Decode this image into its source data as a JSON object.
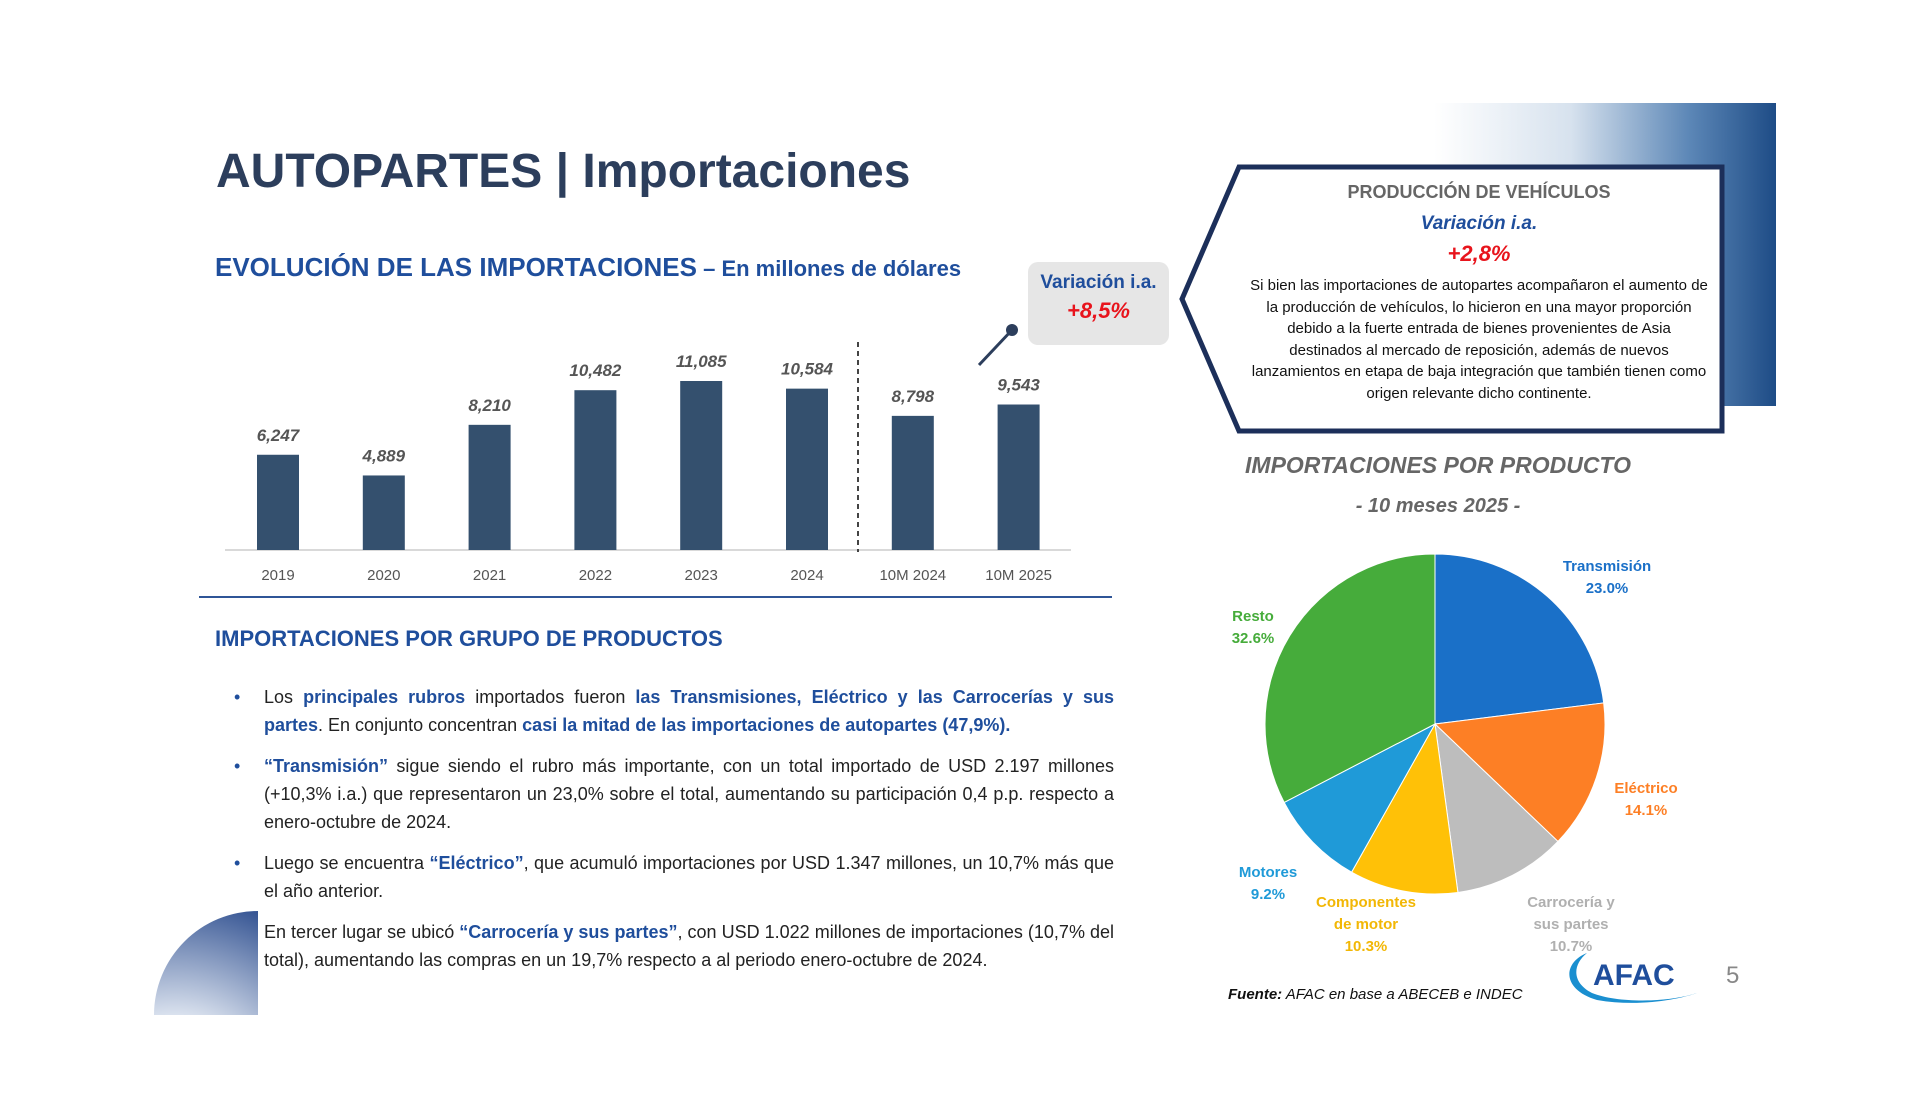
{
  "title": "AUTOPARTES | Importaciones",
  "subtitle": {
    "main": "EVOLUCIÓN DE LAS IMPORTACIONES",
    "unit": " – En millones de dólares"
  },
  "variation_box": {
    "label": "Variación i.a.",
    "value": "+8,5%"
  },
  "chart_data": [
    {
      "type": "bar",
      "title": "EVOLUCIÓN DE LAS IMPORTACIONES – En millones de dólares",
      "categories": [
        "2019",
        "2020",
        "2021",
        "2022",
        "2023",
        "2024",
        "10M 2024",
        "10M 2025"
      ],
      "values": [
        6247,
        4889,
        8210,
        10482,
        11085,
        10584,
        8798,
        9543
      ],
      "value_labels": [
        "6,247",
        "4,889",
        "8,210",
        "10,482",
        "11,085",
        "10,584",
        "8,798",
        "9,543"
      ],
      "color": "#34506e",
      "ylim": [
        0,
        12000
      ]
    },
    {
      "type": "pie",
      "title": "IMPORTACIONES POR PRODUCTO",
      "subtitle": "- 10 meses 2025 -",
      "slices": [
        {
          "label": "Transmisión",
          "value": 23.0,
          "pct": "23.0%",
          "color": "#1a70c8"
        },
        {
          "label": "Eléctrico",
          "value": 14.1,
          "pct": "14.1%",
          "color": "#fd7f25"
        },
        {
          "label": "Carrocería y sus partes",
          "value": 10.7,
          "pct": "10.7%",
          "color": "#bdbdbd",
          "label_color": "#b0b0b0"
        },
        {
          "label": "Componentes de motor",
          "value": 10.3,
          "pct": "10.3%",
          "color": "#ffc107",
          "label_color": "#f2b705"
        },
        {
          "label": "Motores",
          "value": 9.2,
          "pct": "9.2%",
          "color": "#1f9ad8"
        },
        {
          "label": "Resto",
          "value": 32.6,
          "pct": "32.6%",
          "color": "#46ac3b"
        }
      ]
    }
  ],
  "section2": {
    "heading": "IMPORTACIONES POR GRUPO DE PRODUCTOS",
    "bullets": [
      [
        "Los ",
        "principales rubros",
        " importados fueron ",
        "las Transmisiones, Eléctrico y las Carrocerías y sus partes",
        ". En conjunto concentran ",
        "casi la mitad de las importaciones de autopartes (47,9%)."
      ],
      [
        "",
        "“Transmisión”",
        " sigue siendo el rubro más importante, con un total importado de USD 2.197 millones (+10,3% i.a.) que representaron un 23,0% sobre el total, aumentando su participación 0,4 p.p. respecto a enero-octubre de 2024.",
        "",
        "",
        ""
      ],
      [
        "Luego se encuentra ",
        "“Eléctrico”",
        ", que acumuló importaciones por USD 1.347 millones, un 10,7% más que el año anterior.",
        "",
        "",
        ""
      ],
      [
        "En tercer lugar se ubicó ",
        "“Carrocería y sus partes”",
        ", con USD 1.022 millones de importaciones (10,7% del total), aumentando las compras en un 19,7% respecto a al periodo enero-octubre de 2024.",
        "",
        "",
        ""
      ]
    ]
  },
  "callout": {
    "title": "PRODUCCIÓN DE VEHÍCULOS",
    "label": "Variación i.a.",
    "value": "+2,8%",
    "text": "Si bien las importaciones de autopartes acompañaron el aumento de la producción de vehículos, lo hicieron en una mayor proporción debido a la fuerte entrada de bienes provenientes de Asia destinados al mercado de reposición, además de nuevos lanzamientos en etapa de baja integración que también tienen como origen relevante dicho continente."
  },
  "source": {
    "label": "Fuente:",
    "text": " AFAC en base a ABECEB e INDEC"
  },
  "logo": "AFAC",
  "page_number": "5"
}
